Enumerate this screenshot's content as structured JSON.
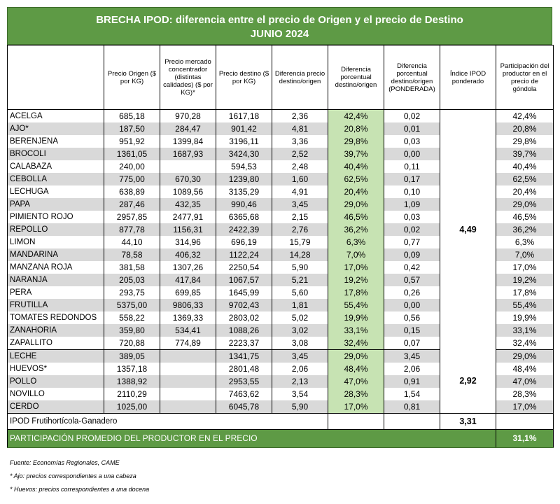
{
  "title": {
    "line1": "BRECHA IPOD: diferencia entre el precio de Origen y el precio de Destino",
    "line2": "JUNIO 2024"
  },
  "headers": [
    "",
    "Precio Origen ($ por KG)",
    "Precio mercado concentrador (distintas calidades) ($ por KG)*",
    "Precio destino ($ por KG)",
    "Diferencia precio destino/origen",
    "Diferencia porcentual destino/origen",
    "Diferencia porcentual destino/origen (PONDERADA)",
    "Índice IPOD ponderado",
    "Participación del productor en el precio de góndola"
  ],
  "groups": [
    {
      "ipod": "4,49",
      "rows": [
        [
          "ACELGA",
          "685,18",
          "970,28",
          "1617,18",
          "2,36",
          "42,4%",
          "0,02",
          "42,4%"
        ],
        [
          "AJO*",
          "187,50",
          "284,47",
          "901,42",
          "4,81",
          "20,8%",
          "0,01",
          "20,8%"
        ],
        [
          "BERENJENA",
          "951,92",
          "1399,84",
          "3196,11",
          "3,36",
          "29,8%",
          "0,03",
          "29,8%"
        ],
        [
          "BROCOLI",
          "1361,05",
          "1687,93",
          "3424,30",
          "2,52",
          "39,7%",
          "0,00",
          "39,7%"
        ],
        [
          "CALABAZA",
          "240,00",
          "",
          "594,53",
          "2,48",
          "40,4%",
          "0,11",
          "40,4%"
        ],
        [
          "CEBOLLA",
          "775,00",
          "670,30",
          "1239,80",
          "1,60",
          "62,5%",
          "0,17",
          "62,5%"
        ],
        [
          "LECHUGA",
          "638,89",
          "1089,56",
          "3135,29",
          "4,91",
          "20,4%",
          "0,10",
          "20,4%"
        ],
        [
          "PAPA",
          "287,46",
          "432,35",
          "990,46",
          "3,45",
          "29,0%",
          "1,09",
          "29,0%"
        ],
        [
          "PIMIENTO ROJO",
          "2957,85",
          "2477,91",
          "6365,68",
          "2,15",
          "46,5%",
          "0,03",
          "46,5%"
        ],
        [
          "REPOLLO",
          "877,78",
          "1156,31",
          "2422,39",
          "2,76",
          "36,2%",
          "0,02",
          "36,2%"
        ],
        [
          "LIMON",
          "44,10",
          "314,96",
          "696,19",
          "15,79",
          "6,3%",
          "0,77",
          "6,3%"
        ],
        [
          "MANDARINA",
          "78,58",
          "406,32",
          "1122,24",
          "14,28",
          "7,0%",
          "0,09",
          "7,0%"
        ],
        [
          "MANZANA ROJA",
          "381,58",
          "1307,26",
          "2250,54",
          "5,90",
          "17,0%",
          "0,42",
          "17,0%"
        ],
        [
          "NARANJA",
          "205,03",
          "417,84",
          "1067,57",
          "5,21",
          "19,2%",
          "0,57",
          "19,2%"
        ],
        [
          "PERA",
          "293,75",
          "699,85",
          "1645,99",
          "5,60",
          "17,8%",
          "0,26",
          "17,8%"
        ],
        [
          "FRUTILLA",
          "5375,00",
          "9806,33",
          "9702,43",
          "1,81",
          "55,4%",
          "0,00",
          "55,4%"
        ],
        [
          "TOMATES REDONDOS",
          "558,22",
          "1369,33",
          "2803,02",
          "5,02",
          "19,9%",
          "0,56",
          "19,9%"
        ],
        [
          "ZANAHORIA",
          "359,80",
          "534,41",
          "1088,26",
          "3,02",
          "33,1%",
          "0,15",
          "33,1%"
        ],
        [
          "ZAPALLITO",
          "720,88",
          "774,89",
          "2223,37",
          "3,08",
          "32,4%",
          "0,07",
          "32,4%"
        ]
      ]
    },
    {
      "ipod": "2,92",
      "rows": [
        [
          "LECHE",
          "389,05",
          "",
          "1341,75",
          "3,45",
          "29,0%",
          "3,45",
          "29,0%"
        ],
        [
          "HUEVOS*",
          "1357,18",
          "",
          "2801,48",
          "2,06",
          "48,4%",
          "2,06",
          "48,4%"
        ],
        [
          "POLLO",
          "1388,92",
          "",
          "2953,55",
          "2,13",
          "47,0%",
          "0,91",
          "47,0%"
        ],
        [
          "NOVILLO",
          "2110,29",
          "",
          "7463,62",
          "3,54",
          "28,3%",
          "1,54",
          "28,3%"
        ],
        [
          "CERDO",
          "1025,00",
          "",
          "6045,78",
          "5,90",
          "17,0%",
          "0,81",
          "17,0%"
        ]
      ]
    }
  ],
  "summary": {
    "label": "IPOD Frutihortícola-Ganadero",
    "value": "3,31"
  },
  "average": {
    "label": "PARTICIPACIÓN PROMEDIO DEL PRODUCTOR EN EL PRECIO",
    "value": "31,1%"
  },
  "notes": [
    "Fuente: Economías Regionales, CAME",
    "* Ajo: precios correspondientes a una cabeza",
    "* Huevos: precios correspondientes a una docena"
  ],
  "colors": {
    "band_green": "#5e9a45",
    "column_green": "#c7e3b3",
    "row_gray": "#d9d9d9"
  }
}
